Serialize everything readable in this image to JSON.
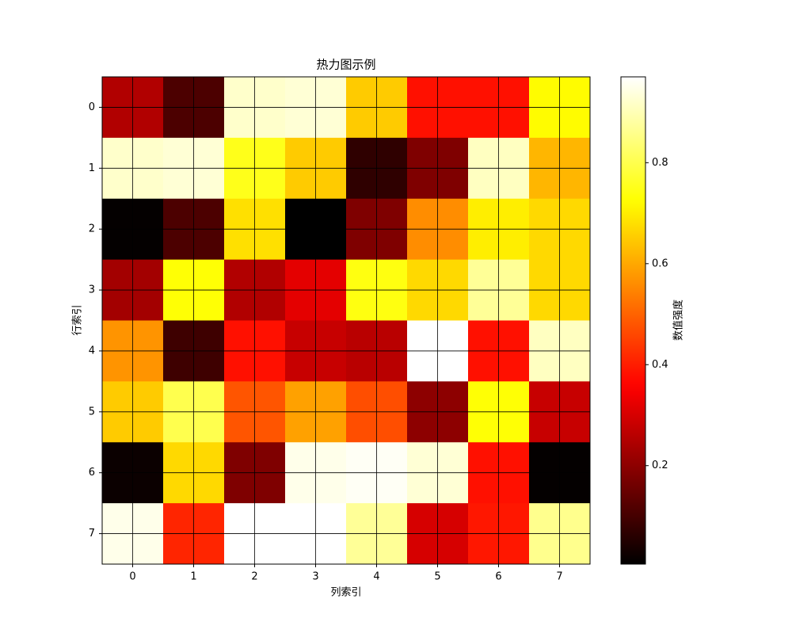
{
  "chart_data": {
    "type": "heatmap",
    "title": "热力图示例",
    "x_label": "列索引",
    "y_label": "行索引",
    "colormap": "hot",
    "grid": true,
    "xticks": [
      0,
      1,
      2,
      3,
      4,
      5,
      6,
      7
    ],
    "yticks": [
      0,
      1,
      2,
      3,
      4,
      5,
      6,
      7
    ],
    "values": [
      [
        0.25,
        0.11,
        0.92,
        0.93,
        0.65,
        0.38,
        0.38,
        0.72
      ],
      [
        0.92,
        0.93,
        0.75,
        0.65,
        0.07,
        0.18,
        0.91,
        0.62
      ],
      [
        0.01,
        0.11,
        0.68,
        0.005,
        0.18,
        0.56,
        0.7,
        0.67
      ],
      [
        0.23,
        0.73,
        0.25,
        0.32,
        0.74,
        0.67,
        0.87,
        0.67
      ],
      [
        0.57,
        0.09,
        0.38,
        0.28,
        0.26,
        0.97,
        0.38,
        0.91
      ],
      [
        0.65,
        0.8,
        0.48,
        0.59,
        0.47,
        0.2,
        0.73,
        0.28
      ],
      [
        0.02,
        0.67,
        0.18,
        0.95,
        0.96,
        0.93,
        0.38,
        0.01
      ],
      [
        0.95,
        0.41,
        0.97,
        0.97,
        0.87,
        0.3,
        0.39,
        0.86
      ]
    ],
    "colorbar": {
      "label": "数值强度",
      "lim": [
        0.005,
        0.97
      ],
      "ticks": [
        0.2,
        0.4,
        0.6,
        0.8
      ]
    }
  }
}
